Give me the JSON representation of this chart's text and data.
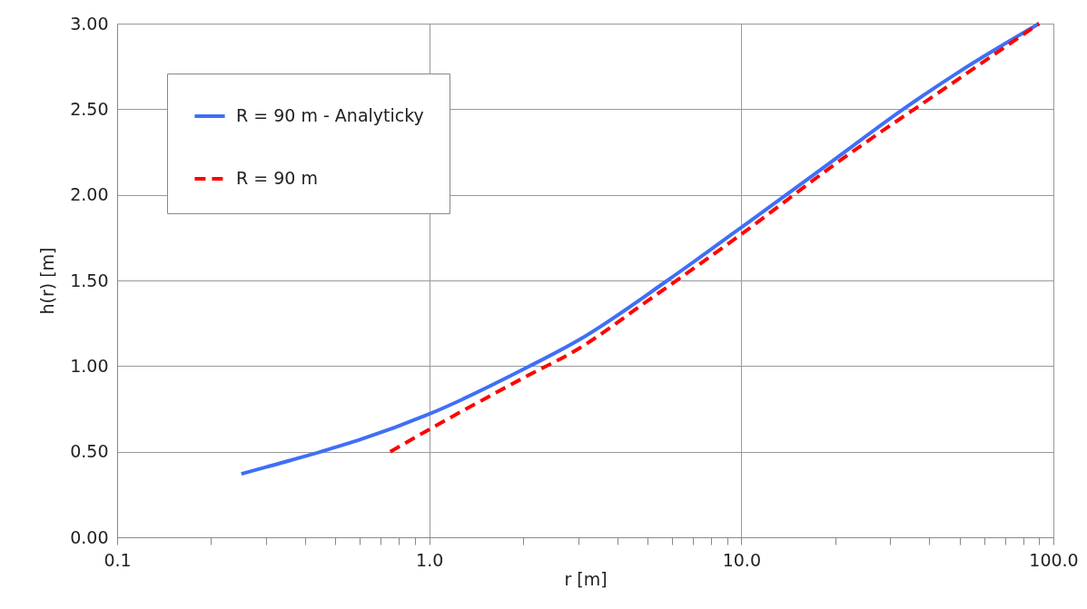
{
  "chart_data": {
    "type": "line",
    "xlabel": "r [m]",
    "ylabel": "h(r) [m]",
    "log": "x",
    "grid": true,
    "legend": "top left",
    "marker": "none",
    "xlim": [
      0.1,
      100
    ],
    "ylim": [
      0,
      3
    ],
    "xticks": [
      {
        "value": 0.1,
        "label": "0.1"
      },
      {
        "value": 0.2,
        "label": null
      },
      {
        "value": 0.3,
        "label": null
      },
      {
        "value": 0.4,
        "label": null
      },
      {
        "value": 0.5,
        "label": null
      },
      {
        "value": 0.6,
        "label": null
      },
      {
        "value": 0.7,
        "label": null
      },
      {
        "value": 0.8,
        "label": null
      },
      {
        "value": 0.9,
        "label": null
      },
      {
        "value": 1,
        "label": "1.0"
      },
      {
        "value": 2,
        "label": null
      },
      {
        "value": 3,
        "label": null
      },
      {
        "value": 4,
        "label": null
      },
      {
        "value": 5,
        "label": null
      },
      {
        "value": 6,
        "label": null
      },
      {
        "value": 7,
        "label": null
      },
      {
        "value": 8,
        "label": null
      },
      {
        "value": 9,
        "label": null
      },
      {
        "value": 10,
        "label": "10.0"
      },
      {
        "value": 20,
        "label": null
      },
      {
        "value": 30,
        "label": null
      },
      {
        "value": 40,
        "label": null
      },
      {
        "value": 50,
        "label": null
      },
      {
        "value": 60,
        "label": null
      },
      {
        "value": 70,
        "label": null
      },
      {
        "value": 80,
        "label": null
      },
      {
        "value": 90,
        "label": null
      },
      {
        "value": 100,
        "label": "100.0"
      }
    ],
    "yticks": [
      {
        "value": 0,
        "label": "0.00"
      },
      {
        "value": 0.5,
        "label": "0.50"
      },
      {
        "value": 1,
        "label": "1.00"
      },
      {
        "value": 1.5,
        "label": "1.50"
      },
      {
        "value": 2,
        "label": "2.00"
      },
      {
        "value": 2.5,
        "label": "2.50"
      },
      {
        "value": 3,
        "label": "3.00"
      }
    ],
    "series": [
      {
        "name": "R = 90 m - Analyticky",
        "color": "#3f6ff5",
        "line_style": "solid",
        "x": [
          0.25,
          0.3,
          0.45,
          0.6,
          1,
          2.1,
          3,
          5.8,
          10,
          13,
          20,
          33,
          50,
          90
        ],
        "values": [
          0.37,
          0.41,
          0.5,
          0.57,
          0.72,
          1.0,
          1.15,
          1.5,
          1.81,
          1.96,
          2.21,
          2.5,
          2.72,
          3.0
        ]
      },
      {
        "name": "R = 90 m",
        "color": "#ff0000",
        "line_style": "dashed",
        "x": [
          0.75,
          1,
          2,
          3,
          5,
          10,
          20,
          50,
          90
        ],
        "values": [
          0.5,
          0.63,
          0.93,
          1.1,
          1.38,
          1.77,
          2.18,
          2.68,
          3.0
        ]
      }
    ]
  }
}
